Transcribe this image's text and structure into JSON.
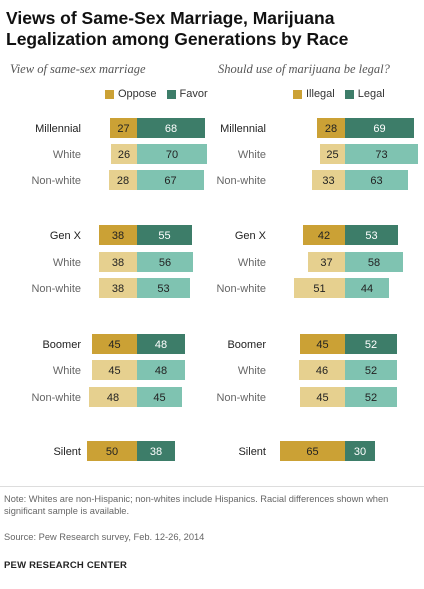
{
  "title": "Views of Same-Sex Marriage, Marijuana Legalization among Generations by Race",
  "note": "Note: Whites are non-Hispanic; non-whites include Hispanics. Racial differences shown when significant sample is available.",
  "source": "Source: Pew Research survey, Feb. 12-26, 2014",
  "footer": "PEW RESEARCH CENTER",
  "colors": {
    "dark_gold": "#cba135",
    "light_gold": "#e6d08f",
    "dark_green": "#3d7d69",
    "light_green": "#7fc3b1"
  },
  "chart_data": [
    {
      "type": "bar",
      "subtitle": "View of same-sex marriage",
      "legend": [
        "Oppose",
        "Favor"
      ],
      "categories": [
        "Millennial",
        "White",
        "Non-white",
        "Gen X",
        "White",
        "Non-white",
        "Boomer",
        "White",
        "Non-white",
        "Silent"
      ],
      "series": [
        {
          "name": "Oppose",
          "values": [
            27,
            26,
            28,
            38,
            38,
            38,
            45,
            45,
            48,
            50
          ]
        },
        {
          "name": "Favor",
          "values": [
            68,
            70,
            67,
            55,
            56,
            53,
            48,
            48,
            45,
            38
          ]
        }
      ]
    },
    {
      "type": "bar",
      "subtitle": "Should use of marijuana be legal?",
      "legend": [
        "Illegal",
        "Legal"
      ],
      "categories": [
        "Millennial",
        "White",
        "Non-white",
        "Gen X",
        "White",
        "Non-white",
        "Boomer",
        "White",
        "Non-white",
        "Silent"
      ],
      "series": [
        {
          "name": "Illegal",
          "values": [
            28,
            25,
            33,
            42,
            37,
            51,
            45,
            46,
            45,
            65
          ]
        },
        {
          "name": "Legal",
          "values": [
            69,
            73,
            63,
            53,
            58,
            44,
            52,
            52,
            52,
            30
          ]
        }
      ]
    }
  ]
}
